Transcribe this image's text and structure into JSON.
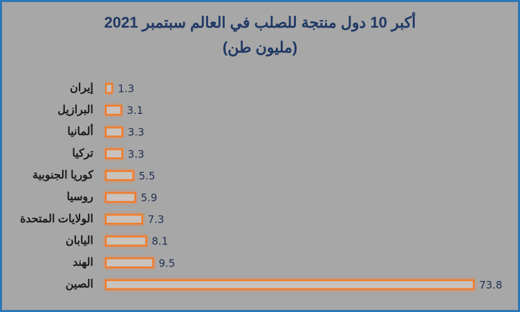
{
  "chart_data": {
    "type": "bar",
    "orientation": "horizontal",
    "title": "أكبر 10 دول منتجة للصلب في العالم سبتمبر 2021",
    "subtitle": "(مليون طن)",
    "categories": [
      "إيران",
      "البرازيل",
      "ألمانيا",
      "تركيا",
      "كوريا الجنوبية",
      "روسيا",
      "الولايات المتحدة",
      "اليابان",
      "الهند",
      "الصين"
    ],
    "values": [
      1.3,
      3.1,
      3.3,
      3.3,
      5.5,
      5.9,
      7.3,
      8.1,
      9.5,
      73.8
    ],
    "color": "#f07c2a"
  }
}
